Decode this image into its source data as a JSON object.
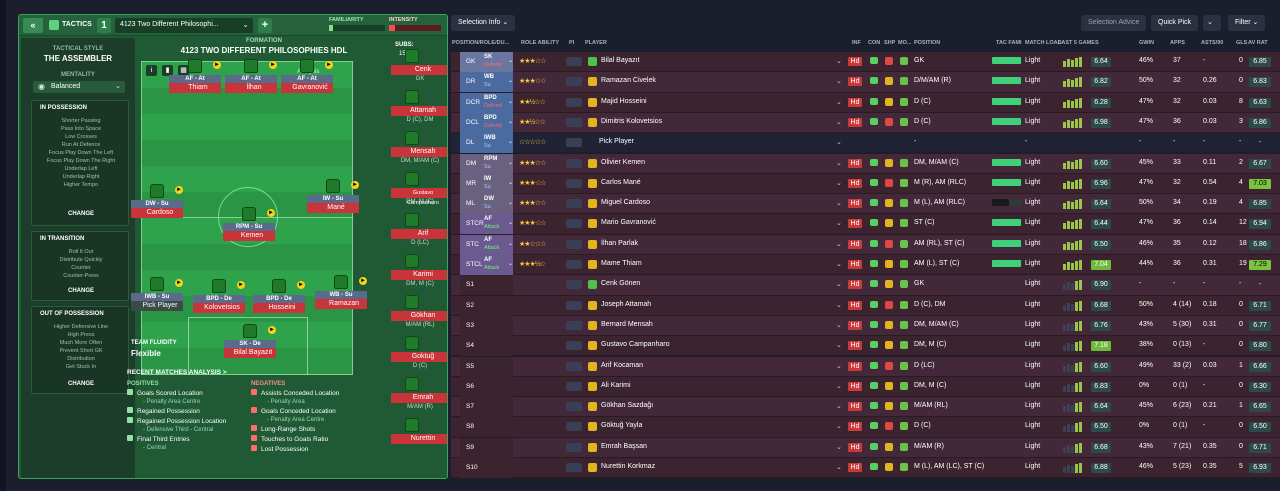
{
  "header": {
    "back_label": "«",
    "tactics_label": "TACTICS",
    "slot_number": "1",
    "tactic_name": "4123 Two Different Philosophi...",
    "add_label": "+",
    "familiarity_label": "FAMILIARITY",
    "intensity_label": "INTENSITY"
  },
  "left": {
    "tactical_style_label": "TACTICAL STYLE",
    "tactical_style": "THE ASSEMBLER",
    "mentality_label": "MENTALITY",
    "mentality": "Balanced",
    "in_possession_label": "IN POSSESSION",
    "in_possession": [
      "Shorter Passing",
      "Pass Into Space",
      "Low Crosses",
      "Run At Defence",
      "Focus Play Down The Left",
      "Focus Play Down The Right",
      "Underlap Left",
      "Underlap Right",
      "Higher Tempo"
    ],
    "in_transition_label": "IN TRANSITION",
    "in_transition": [
      "Roll It Out",
      "Distribute Quickly",
      "Counter",
      "Counter-Press"
    ],
    "out_possession_label": "OUT OF POSSESSION",
    "out_possession": [
      "Higher Defensive Line",
      "High Press",
      "Much More Often",
      "Prevent Short GK",
      "Distribution",
      "Get Stuck In"
    ],
    "change_label": "CHANGE"
  },
  "formation": {
    "label": "FORMATION",
    "name": "4123 TWO DIFFERENT PHILOSOPHIES HDL",
    "subs_label": "SUBS:",
    "subs_count": "15/15",
    "analysis_label": "Analysis",
    "fluidity_label": "TEAM FLUIDITY",
    "fluidity": "Flexible"
  },
  "pitch_players": [
    {
      "role": "AF - At",
      "name": "Thiam"
    },
    {
      "role": "AF - At",
      "name": "İlhan"
    },
    {
      "role": "AF - At",
      "name": "Gavranović"
    },
    {
      "role": "DW - Su",
      "name": "Cardoso"
    },
    {
      "role": "IW - Su",
      "name": "Mané"
    },
    {
      "role": "RPM - Su",
      "name": "Kemen"
    },
    {
      "role": "IWB - Su",
      "name": "Pick Player"
    },
    {
      "role": "BPD - De",
      "name": "Kolovetsios"
    },
    {
      "role": "BPD - De",
      "name": "Hosseini"
    },
    {
      "role": "WB - Su",
      "name": "Ramazan"
    },
    {
      "role": "SK - De",
      "name": "Bilal Bayazıt"
    }
  ],
  "subs": [
    {
      "name": "Cenk",
      "pos": "GK"
    },
    {
      "name": "Attamah",
      "pos": "D (C), DM"
    },
    {
      "name": "Mensah",
      "pos": "DM, M/AM (C)"
    },
    {
      "name": "Gustavo Campanharo",
      "pos": "DM, M (C)"
    },
    {
      "name": "Arif",
      "pos": "D (LC)"
    },
    {
      "name": "Karimi",
      "pos": "DM, M (C)"
    },
    {
      "name": "Gökhan",
      "pos": "M/AM (RL)"
    },
    {
      "name": "Goktuğ",
      "pos": "D (C)"
    },
    {
      "name": "Emrah",
      "pos": "M/AM (R)"
    },
    {
      "name": "Nurettin",
      "pos": ""
    }
  ],
  "analysis": {
    "title": "RECENT MATCHES ANALYSIS >",
    "positives_label": "POSITIVES",
    "negatives_label": "NEGATIVES",
    "positives": [
      {
        "t": "Goals Scored Location",
        "s": "- Penalty Area Centre"
      },
      {
        "t": "Regained Possession",
        "s": ""
      },
      {
        "t": "Regained Possession Location",
        "s": "- Defensive Third - Central"
      },
      {
        "t": "Final Third Entries",
        "s": "- Central"
      }
    ],
    "negatives": [
      {
        "t": "Assists Conceded Location",
        "s": "- Penalty Area"
      },
      {
        "t": "Goals Conceded Location",
        "s": "- Penalty Area Centre"
      },
      {
        "t": "Long-Range Shots",
        "s": ""
      },
      {
        "t": "Touches to Goals Ratio",
        "s": ""
      },
      {
        "t": "Lost Possession",
        "s": ""
      }
    ]
  },
  "squad_toolbar": {
    "selection_info": "Selection Info",
    "selection_advice": "Selection Advice",
    "quick_pick": "Quick Pick",
    "filter": "Filter"
  },
  "columns": [
    "POSITION/ROLE/DU...",
    "ROLE ABILITY",
    "PI",
    "PLAYER",
    "INF",
    "CON",
    "SHP",
    "MO...",
    "POSITION",
    "TAC FAMI",
    "MATCH LOAD",
    "LAST 5 GAMES",
    "GWIN",
    "APPS",
    "ASTS/90",
    "GLS",
    "AV RAT"
  ],
  "rows": [
    {
      "pos": "GK",
      "role": "SK",
      "duty": "Defend",
      "stars": "★★★☆☆",
      "name": "Bilal Bayazıt",
      "position": "GK",
      "load": "Light",
      "avr": "6.64",
      "gwin": "46%",
      "apps": "37",
      "asts": "-",
      "gls": "0",
      "avrat": "6.85",
      "gk": true,
      "fam": 95
    },
    {
      "pos": "DR",
      "role": "WB",
      "duty": "Su",
      "stars": "★★★☆☆",
      "name": "Ramazan Civelek",
      "position": "D/M/AM (R)",
      "load": "Light",
      "avr": "6.82",
      "gwin": "50%",
      "apps": "32",
      "asts": "0.26",
      "gls": "0",
      "avrat": "6.83",
      "fam": 95
    },
    {
      "pos": "DCR",
      "role": "BPD",
      "duty": "Defend",
      "stars": "★★½☆☆",
      "name": "Majid Hosseini",
      "position": "D (C)",
      "load": "Light",
      "avr": "6.28",
      "gwin": "47%",
      "apps": "32",
      "asts": "0.03",
      "gls": "8",
      "avrat": "6.63",
      "fam": 95
    },
    {
      "pos": "DCL",
      "role": "BPD",
      "duty": "Defend",
      "stars": "★★½☆☆",
      "name": "Dimitris Kolovetsios",
      "position": "D (C)",
      "load": "Light",
      "avr": "6.98",
      "gwin": "47%",
      "apps": "36",
      "asts": "0.03",
      "gls": "3",
      "avrat": "6.86",
      "fam": 95
    },
    {
      "pos": "DL",
      "role": "IWB",
      "duty": "Su",
      "stars": "☆☆☆☆☆",
      "name": "Pick Player",
      "position": "-",
      "load": "-",
      "avr": "",
      "gwin": "-",
      "apps": "-",
      "asts": "-",
      "gls": "-",
      "avrat": "-",
      "empty": true
    },
    {
      "pos": "DM",
      "role": "RPM",
      "duty": "Su",
      "stars": "★★★☆☆",
      "name": "Olivier Kemen",
      "position": "DM, M/AM (C)",
      "load": "Light",
      "avr": "6.60",
      "gwin": "45%",
      "apps": "33",
      "asts": "0.11",
      "gls": "2",
      "avrat": "6.67",
      "fam": 95
    },
    {
      "pos": "MR",
      "role": "IW",
      "duty": "Su",
      "stars": "★★★☆☆",
      "name": "Carlos Mané",
      "position": "M (R), AM (RLC)",
      "load": "Light",
      "avr": "6.96",
      "gwin": "47%",
      "apps": "32",
      "asts": "0.54",
      "gls": "4",
      "avrat": "7.03",
      "hi": true,
      "fam": 95
    },
    {
      "pos": "ML",
      "role": "DW",
      "duty": "Su",
      "stars": "★★★☆☆",
      "name": "Miguel Cardoso",
      "position": "M (L), AM (RLC)",
      "load": "Light",
      "avr": "6.64",
      "gwin": "50%",
      "apps": "34",
      "asts": "0.19",
      "gls": "4",
      "avrat": "6.85",
      "fam": 55
    },
    {
      "pos": "STCR",
      "role": "AF",
      "duty": "Attack",
      "stars": "★★★☆☆",
      "name": "Mario Gavranović",
      "position": "ST (C)",
      "load": "Light",
      "avr": "6.44",
      "gwin": "47%",
      "apps": "36",
      "asts": "0.14",
      "gls": "12",
      "avrat": "6.94",
      "fam": 95
    },
    {
      "pos": "STC",
      "role": "AF",
      "duty": "Attack",
      "stars": "★★☆☆☆",
      "name": "İlhan Parlak",
      "position": "AM (RL), ST (C)",
      "load": "Light",
      "avr": "6.50",
      "gwin": "46%",
      "apps": "35",
      "asts": "0.12",
      "gls": "18",
      "avrat": "6.86",
      "fam": 95
    },
    {
      "pos": "STCL",
      "role": "AF",
      "duty": "Attack",
      "stars": "★★★½☆",
      "name": "Mame Thiam",
      "position": "AM (L), ST (C)",
      "load": "Light",
      "avr": "7.04",
      "gwin": "44%",
      "apps": "36",
      "asts": "0.31",
      "gls": "19",
      "avrat": "7.29",
      "hi": true,
      "avrhi": true,
      "fam": 95
    },
    {
      "pos": "S1",
      "name": "Cenk Gönen",
      "position": "GK",
      "load": "Light",
      "avr": "6.90",
      "gwin": "-",
      "apps": "-",
      "asts": "-",
      "gls": "-",
      "avrat": "-",
      "gk": true,
      "sub": true
    },
    {
      "pos": "S2",
      "name": "Joseph Attamah",
      "position": "D (C), DM",
      "load": "Light",
      "avr": "6.68",
      "gwin": "50%",
      "apps": "4 (14)",
      "asts": "0.18",
      "gls": "0",
      "avrat": "6.71",
      "sub": true
    },
    {
      "pos": "S3",
      "name": "Bernard Mensah",
      "position": "DM, M/AM (C)",
      "load": "Light",
      "avr": "6.76",
      "gwin": "43%",
      "apps": "5 (30)",
      "asts": "0.31",
      "gls": "0",
      "avrat": "6.77",
      "sub": true
    },
    {
      "pos": "S4",
      "name": "Gustavo Campanharo",
      "position": "DM, M (C)",
      "load": "Light",
      "avr": "7.18",
      "gwin": "38%",
      "apps": "0 (13)",
      "asts": "-",
      "gls": "0",
      "avrat": "6.80",
      "avrhi": true,
      "sub": true
    },
    {
      "pos": "S5",
      "name": "Arif Kocaman",
      "position": "D (LC)",
      "load": "Light",
      "avr": "6.60",
      "gwin": "49%",
      "apps": "33 (2)",
      "asts": "0.03",
      "gls": "1",
      "avrat": "6.66",
      "sub": true
    },
    {
      "pos": "S6",
      "name": "Ali Karimi",
      "position": "DM, M (C)",
      "load": "Light",
      "avr": "6.83",
      "gwin": "0%",
      "apps": "0 (1)",
      "asts": "-",
      "gls": "0",
      "avrat": "6.30",
      "sub": true
    },
    {
      "pos": "S7",
      "name": "Gökhan Sazdağı",
      "position": "M/AM (RL)",
      "load": "Light",
      "avr": "6.64",
      "gwin": "45%",
      "apps": "6 (23)",
      "asts": "0.21",
      "gls": "1",
      "avrat": "6.65",
      "sub": true
    },
    {
      "pos": "S8",
      "name": "Göktuğ Yayla",
      "position": "D (C)",
      "load": "Light",
      "avr": "6.50",
      "gwin": "0%",
      "apps": "0 (1)",
      "asts": "-",
      "gls": "0",
      "avrat": "6.50",
      "sub": true
    },
    {
      "pos": "S9",
      "name": "Emrah Başsan",
      "position": "M/AM (R)",
      "load": "Light",
      "avr": "6.68",
      "gwin": "43%",
      "apps": "7 (21)",
      "asts": "0.35",
      "gls": "0",
      "avrat": "6.71",
      "sub": true
    },
    {
      "pos": "S10",
      "name": "Nurettin Korkmaz",
      "position": "M (L), AM (LC), ST (C)",
      "load": "Light",
      "avr": "6.88",
      "gwin": "46%",
      "apps": "5 (23)",
      "asts": "0.35",
      "gls": "5",
      "avrat": "6.93",
      "sub": true
    }
  ],
  "inf_label": "Hd"
}
